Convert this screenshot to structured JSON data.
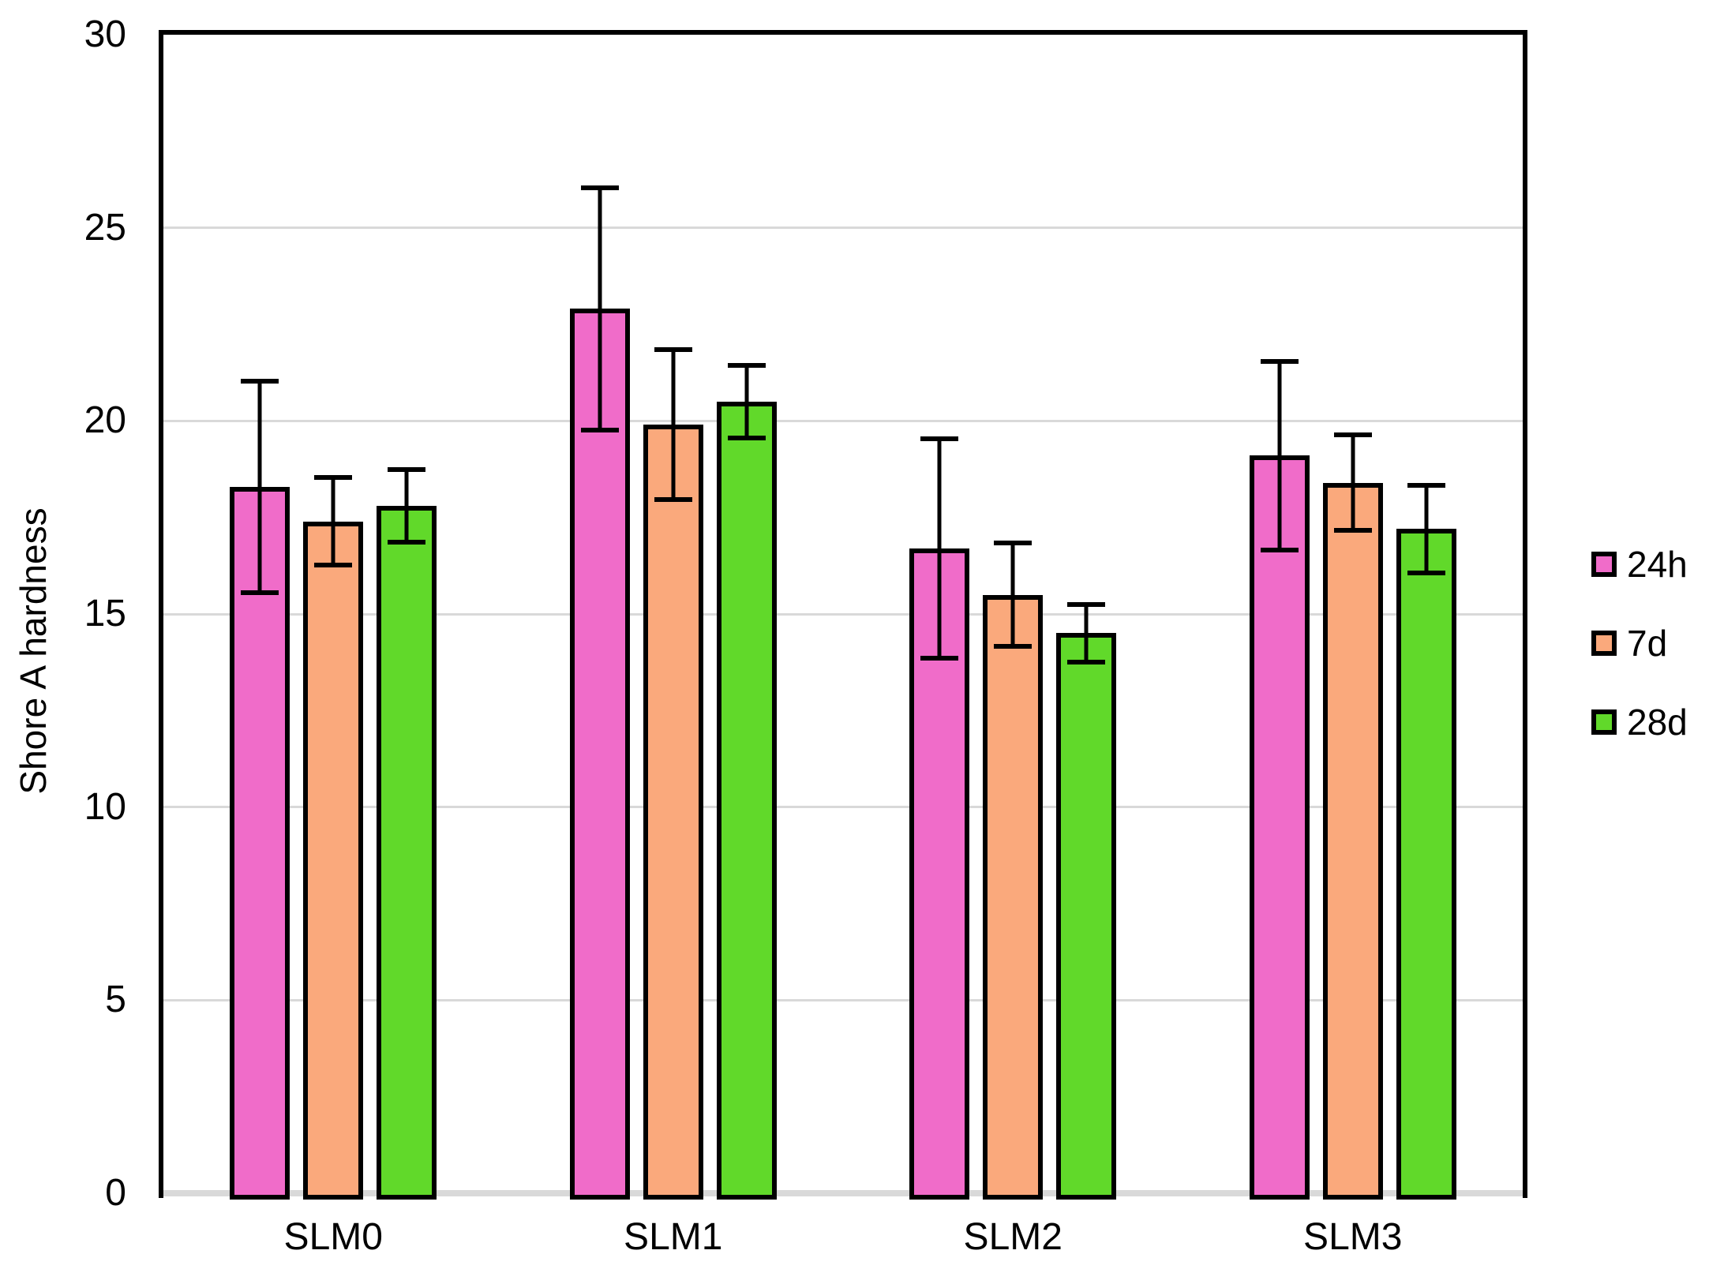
{
  "chart_data": {
    "type": "bar",
    "title": "",
    "ylabel": "Shore A hardness",
    "xlabel": "",
    "ylim": [
      0,
      30
    ],
    "ytick_step": 5,
    "yticks": [
      0,
      5,
      10,
      15,
      20,
      25,
      30
    ],
    "grid": true,
    "error_bars": true,
    "legend_position": "right",
    "categories": [
      "SLM0",
      "SLM1",
      "SLM2",
      "SLM3"
    ],
    "series": [
      {
        "name": "24h",
        "color": "#F06CC9",
        "values": [
          18.3,
          22.9,
          16.7,
          19.1
        ],
        "errors": [
          2.8,
          3.2,
          2.9,
          2.5
        ]
      },
      {
        "name": "7d",
        "color": "#FAA97C",
        "values": [
          17.4,
          19.9,
          15.5,
          18.4
        ],
        "errors": [
          1.2,
          2.0,
          1.4,
          1.3
        ]
      },
      {
        "name": "28d",
        "color": "#61D92A",
        "values": [
          17.8,
          20.5,
          14.5,
          17.2
        ],
        "errors": [
          1.0,
          1.0,
          0.8,
          1.2
        ]
      }
    ]
  },
  "style_colors": {
    "background": "#FFFFFF",
    "gridline": "#D9D9D9",
    "x_axis_line": "#D9D9D9",
    "plot_border": "#000000",
    "bar_border": "#000000",
    "error_bar": "#000000",
    "text": "#000000"
  }
}
